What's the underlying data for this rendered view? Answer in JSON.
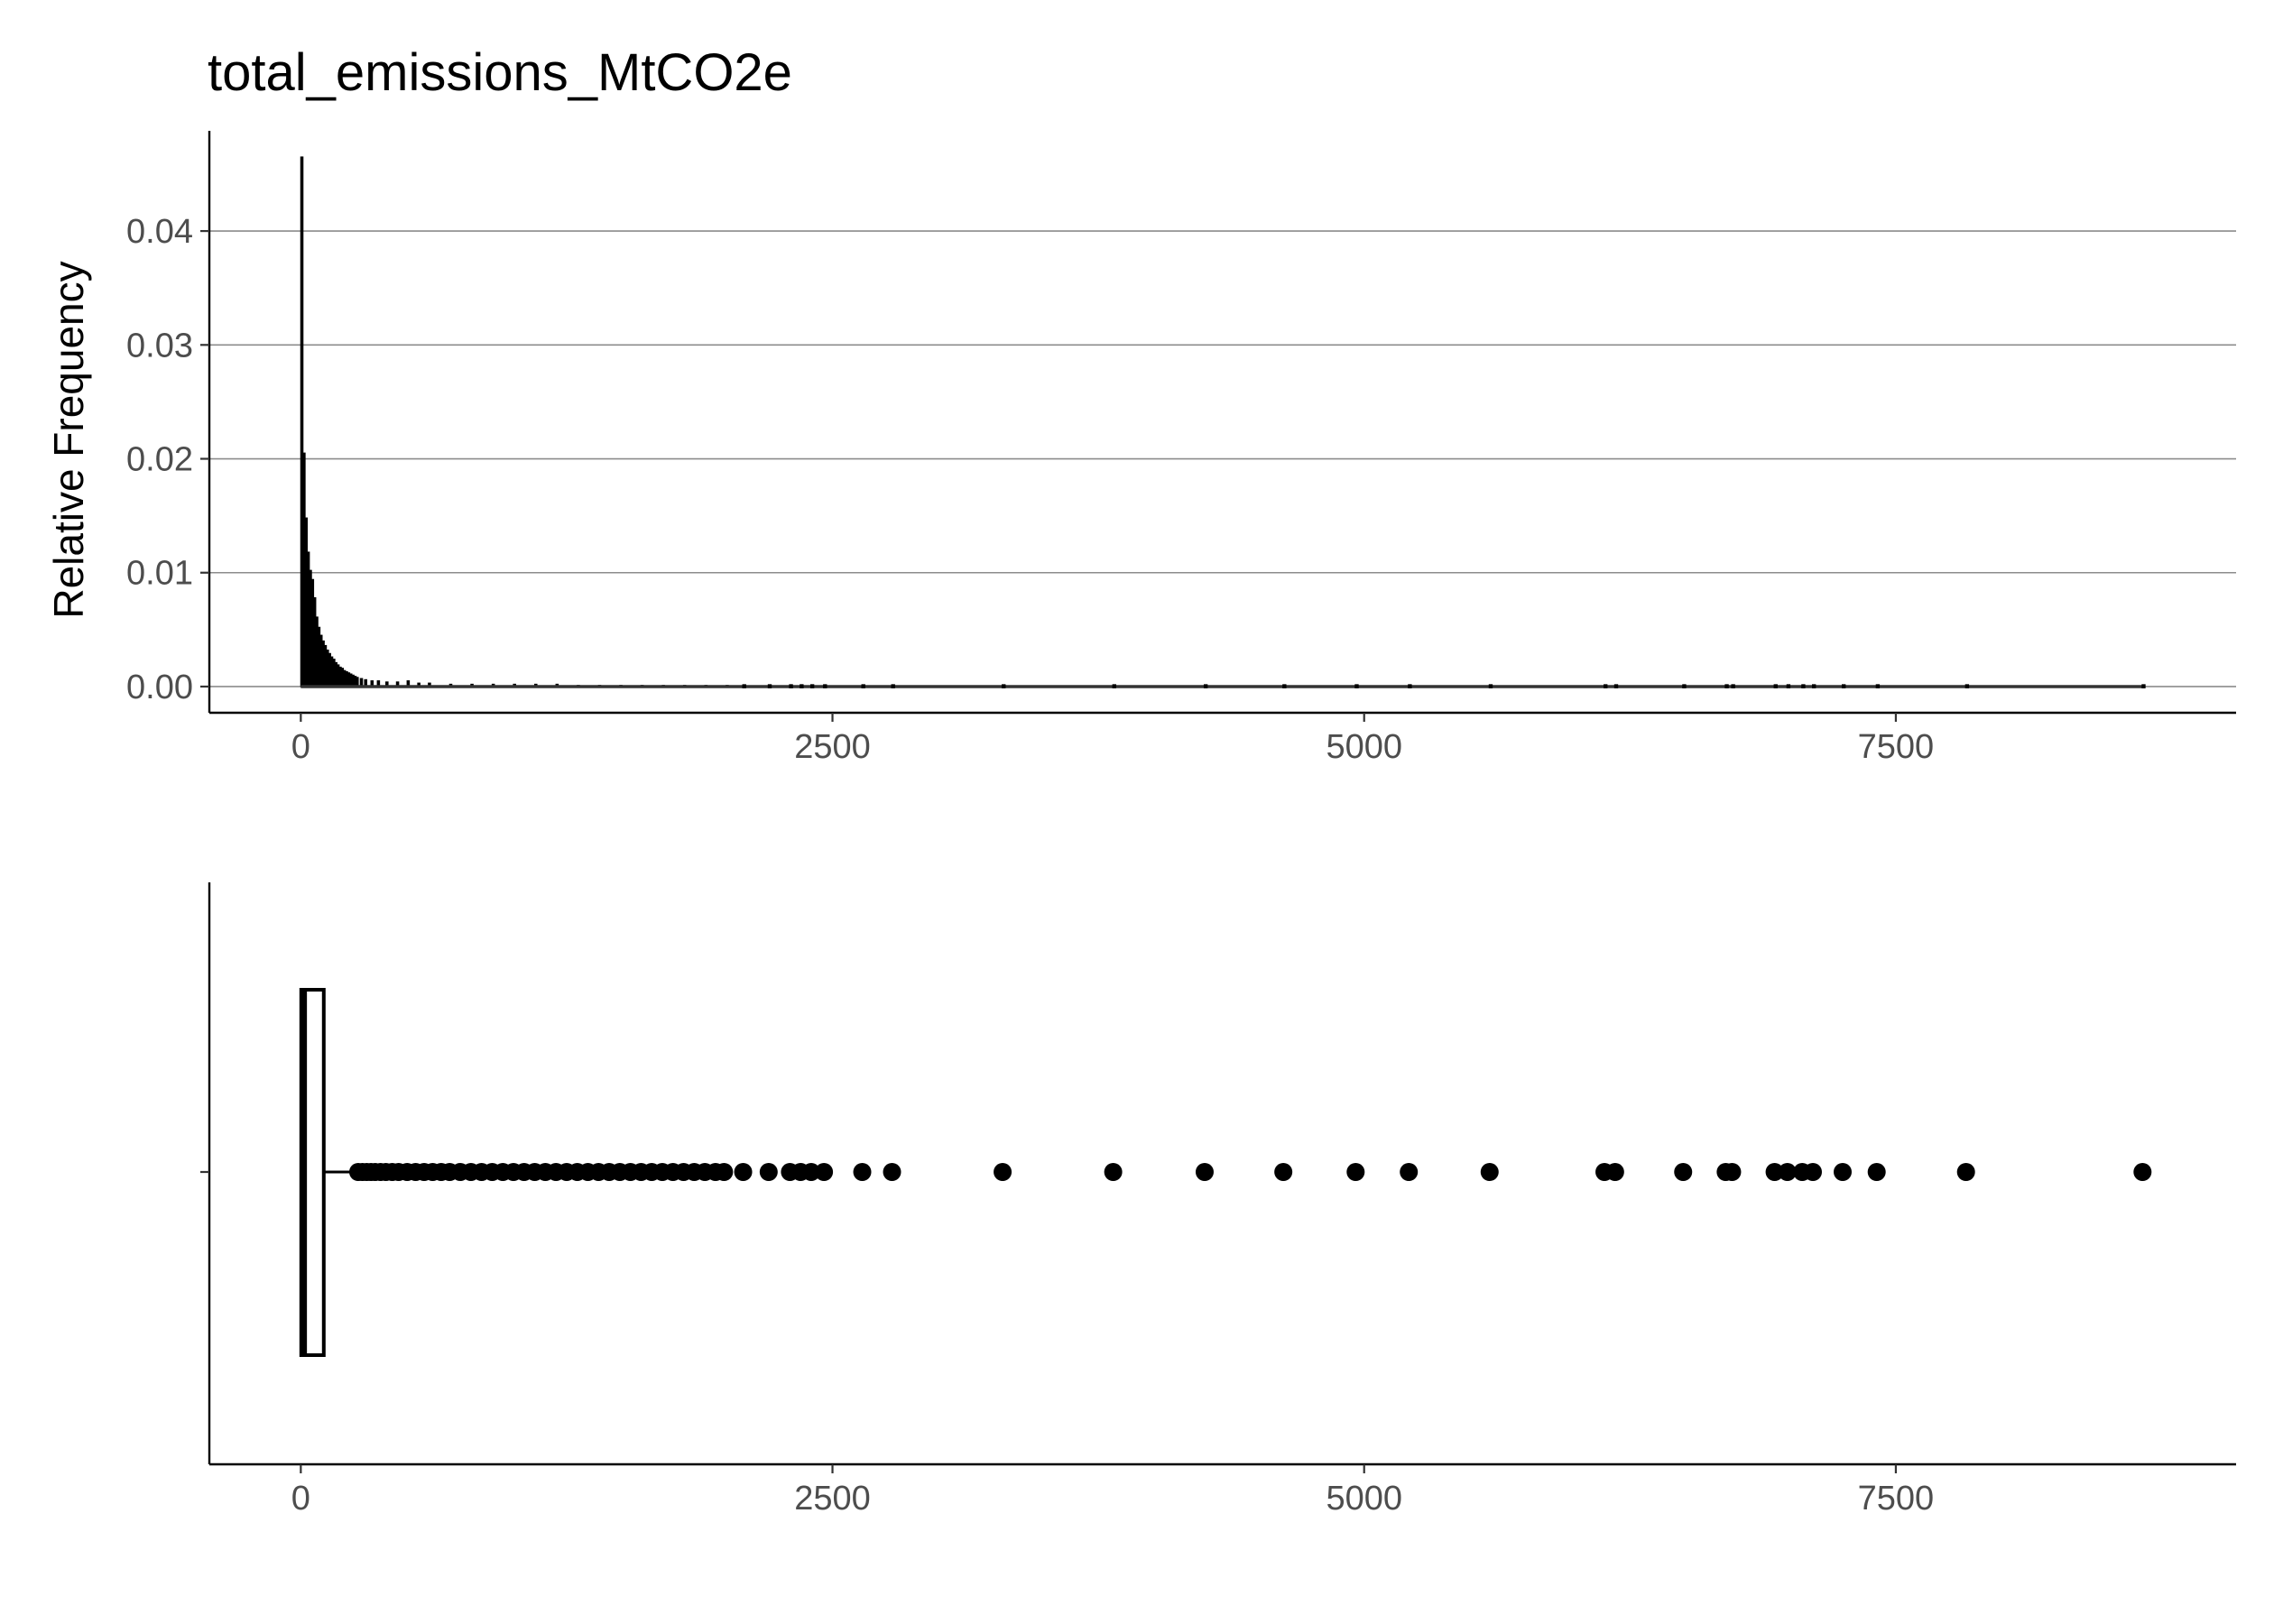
{
  "title": "total_emissions_MtCO2e",
  "colors": {
    "ink": "#000000",
    "grid": "#8c8c8c",
    "tick_text": "#4d4d4d",
    "background": "#ffffff"
  },
  "chart_data": [
    {
      "type": "histogram",
      "title": "total_emissions_MtCO2e",
      "xlabel": "",
      "ylabel": "Relative Frequency",
      "xlim": [
        -430,
        9100
      ],
      "ylim": [
        -0.0023,
        0.0488
      ],
      "x_ticks": [
        0,
        2500,
        5000,
        7500
      ],
      "y_ticks": [
        0.0,
        0.01,
        0.02,
        0.03,
        0.04
      ],
      "y_tick_labels": [
        "0.00",
        "0.01",
        "0.02",
        "0.03",
        "0.04"
      ],
      "grid": "horizontal major",
      "bin_width": 10,
      "bins": [
        {
          "x": 0,
          "y": 0.0465
        },
        {
          "x": 10,
          "y": 0.0205
        },
        {
          "x": 20,
          "y": 0.0148
        },
        {
          "x": 30,
          "y": 0.0118
        },
        {
          "x": 40,
          "y": 0.0102
        },
        {
          "x": 50,
          "y": 0.0094
        },
        {
          "x": 60,
          "y": 0.0078
        },
        {
          "x": 70,
          "y": 0.0061
        },
        {
          "x": 80,
          "y": 0.0052
        },
        {
          "x": 90,
          "y": 0.0045
        },
        {
          "x": 100,
          "y": 0.004
        },
        {
          "x": 110,
          "y": 0.0036
        },
        {
          "x": 120,
          "y": 0.0032
        },
        {
          "x": 130,
          "y": 0.0029
        },
        {
          "x": 140,
          "y": 0.0026
        },
        {
          "x": 150,
          "y": 0.0024
        },
        {
          "x": 160,
          "y": 0.0021
        },
        {
          "x": 170,
          "y": 0.0019
        },
        {
          "x": 180,
          "y": 0.0017
        },
        {
          "x": 190,
          "y": 0.0016
        },
        {
          "x": 200,
          "y": 0.0014
        },
        {
          "x": 210,
          "y": 0.0013
        },
        {
          "x": 220,
          "y": 0.0012
        },
        {
          "x": 230,
          "y": 0.0011
        },
        {
          "x": 240,
          "y": 0.001
        },
        {
          "x": 250,
          "y": 0.0009
        },
        {
          "x": 260,
          "y": 0.0008
        },
        {
          "x": 280,
          "y": 0.0007
        },
        {
          "x": 300,
          "y": 0.0006
        },
        {
          "x": 330,
          "y": 0.0005
        },
        {
          "x": 360,
          "y": 0.0005
        },
        {
          "x": 400,
          "y": 0.0004
        },
        {
          "x": 450,
          "y": 0.0004
        },
        {
          "x": 500,
          "y": 0.0005
        },
        {
          "x": 550,
          "y": 0.0003
        },
        {
          "x": 600,
          "y": 0.0003
        },
        {
          "x": 700,
          "y": 0.0002
        },
        {
          "x": 800,
          "y": 0.0002
        },
        {
          "x": 900,
          "y": 0.0002
        },
        {
          "x": 1000,
          "y": 0.0002
        },
        {
          "x": 1100,
          "y": 0.0002
        },
        {
          "x": 1200,
          "y": 0.0002
        },
        {
          "x": 1300,
          "y": 0.0001
        },
        {
          "x": 1400,
          "y": 0.0001
        },
        {
          "x": 1500,
          "y": 0.0001
        },
        {
          "x": 1600,
          "y": 0.0001
        },
        {
          "x": 1700,
          "y": 0.0001
        },
        {
          "x": 1800,
          "y": 0.0001
        },
        {
          "x": 1900,
          "y": 0.0001
        },
        {
          "x": 2000,
          "y": 0.0001
        }
      ],
      "sparse_bins_x": [
        2080,
        2200,
        2300,
        2350,
        2400,
        2460,
        2640,
        2780,
        3300,
        3820,
        4250,
        4620,
        4960,
        5210,
        5590,
        6130,
        6180,
        6500,
        6700,
        6730,
        6930,
        6990,
        7060,
        7110,
        7250,
        7410,
        7830,
        8660
      ],
      "sparse_bin_height": 5e-05
    },
    {
      "type": "boxplot",
      "xlabel": "",
      "ylabel": "",
      "xlim": [
        -430,
        9100
      ],
      "x_ticks": [
        0,
        2500,
        5000,
        7500
      ],
      "grid": "none",
      "box": {
        "q1": 2,
        "median": 14,
        "q3": 108,
        "whisker_low": 0,
        "whisker_high": 262
      },
      "outliers": [
        270,
        290,
        310,
        330,
        350,
        375,
        400,
        430,
        460,
        500,
        540,
        580,
        620,
        660,
        700,
        750,
        800,
        850,
        900,
        950,
        1000,
        1050,
        1100,
        1150,
        1200,
        1250,
        1300,
        1350,
        1400,
        1450,
        1500,
        1550,
        1600,
        1650,
        1700,
        1750,
        1800,
        1850,
        1900,
        1950,
        1990,
        2080,
        2200,
        2300,
        2350,
        2400,
        2460,
        2640,
        2780,
        3300,
        3820,
        4250,
        4620,
        4960,
        5210,
        5590,
        6130,
        6180,
        6500,
        6700,
        6730,
        6930,
        6990,
        7060,
        7110,
        7250,
        7410,
        7830,
        8660
      ]
    }
  ]
}
